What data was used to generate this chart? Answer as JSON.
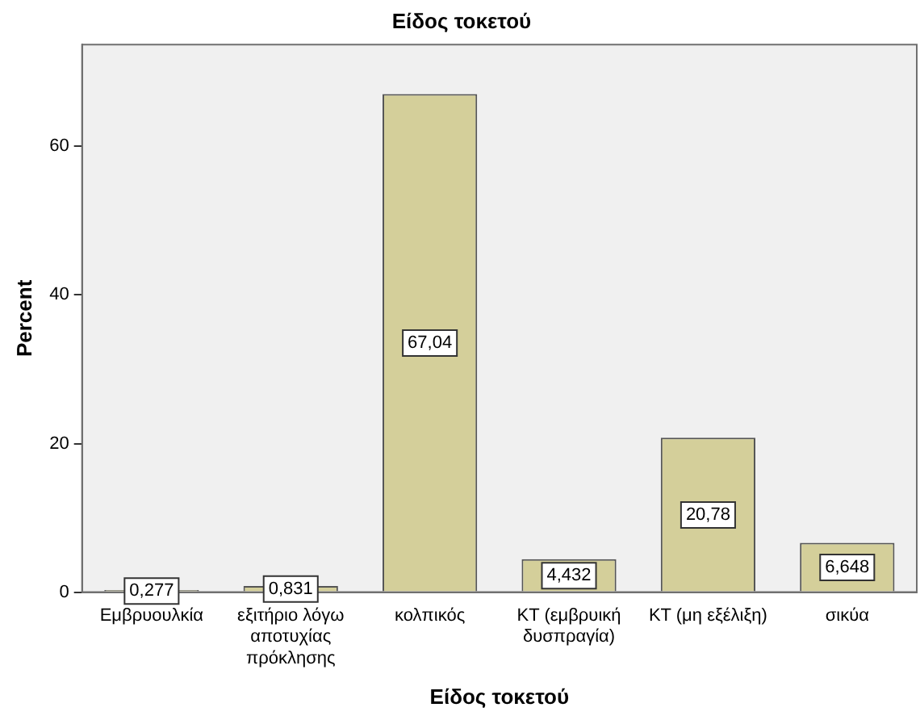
{
  "chart_data": {
    "type": "bar",
    "title": "Είδος τοκετού",
    "xlabel": "Είδος τοκετού",
    "ylabel": "Percent",
    "categories": [
      "Εμβρυουλκία",
      "εξιτήριο λόγω αποτυχίας πρόκλησης",
      "κολπικός",
      "ΚΤ (εμβρυική δυσπραγία)",
      "ΚΤ (μη εξέλιξη)",
      "σικύα"
    ],
    "values": [
      0.277,
      0.831,
      67.04,
      4.432,
      20.78,
      6.648
    ],
    "value_labels": [
      "0,277",
      "0,831",
      "67,04",
      "4,432",
      "20,78",
      "6,648"
    ],
    "color": "#d4cf9a",
    "ylim": [
      0,
      73.7
    ],
    "yticks": [
      0,
      20,
      40,
      60
    ],
    "grid": false,
    "legend": false
  }
}
